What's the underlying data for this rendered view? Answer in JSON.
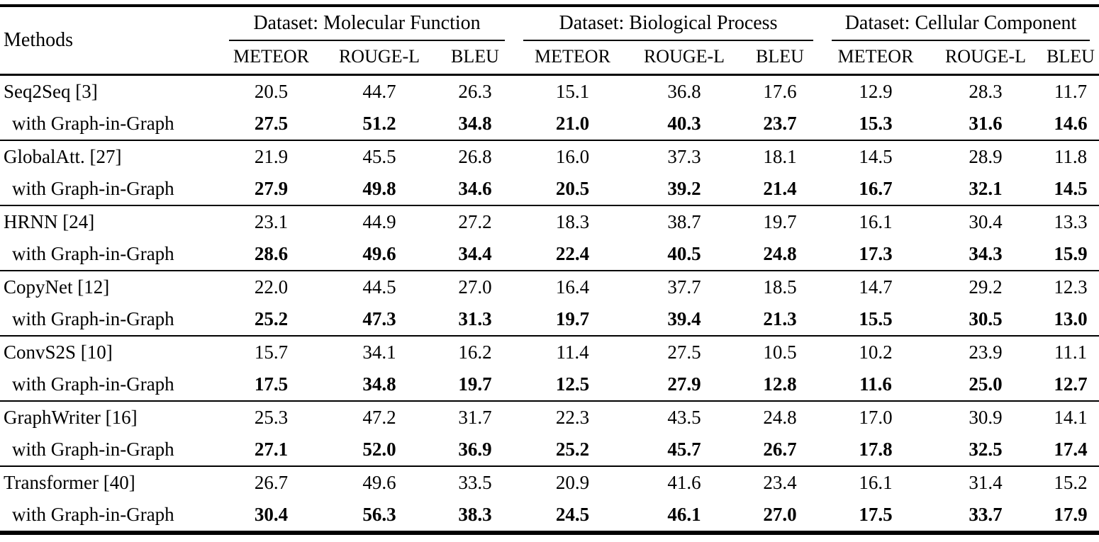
{
  "table": {
    "methods_header": "Methods",
    "dataset_groups": [
      {
        "label": "Dataset: Molecular Function"
      },
      {
        "label": "Dataset: Biological Process"
      },
      {
        "label": "Dataset: Cellular Component"
      }
    ],
    "metric_headers": [
      "METEOR",
      "ROUGE-L",
      "BLEU"
    ],
    "gig_label": "with Graph-in-Graph",
    "groups": [
      {
        "method": "Seq2Seq [3]",
        "base_values": [
          "20.5",
          "44.7",
          "26.3",
          "15.1",
          "36.8",
          "17.6",
          "12.9",
          "28.3",
          "11.7"
        ],
        "gig_values": [
          "27.5",
          "51.2",
          "34.8",
          "21.0",
          "40.3",
          "23.7",
          "15.3",
          "31.6",
          "14.6"
        ]
      },
      {
        "method": "GlobalAtt. [27]",
        "base_values": [
          "21.9",
          "45.5",
          "26.8",
          "16.0",
          "37.3",
          "18.1",
          "14.5",
          "28.9",
          "11.8"
        ],
        "gig_values": [
          "27.9",
          "49.8",
          "34.6",
          "20.5",
          "39.2",
          "21.4",
          "16.7",
          "32.1",
          "14.5"
        ]
      },
      {
        "method": "HRNN [24]",
        "base_values": [
          "23.1",
          "44.9",
          "27.2",
          "18.3",
          "38.7",
          "19.7",
          "16.1",
          "30.4",
          "13.3"
        ],
        "gig_values": [
          "28.6",
          "49.6",
          "34.4",
          "22.4",
          "40.5",
          "24.8",
          "17.3",
          "34.3",
          "15.9"
        ]
      },
      {
        "method": "CopyNet [12]",
        "base_values": [
          "22.0",
          "44.5",
          "27.0",
          "16.4",
          "37.7",
          "18.5",
          "14.7",
          "29.2",
          "12.3"
        ],
        "gig_values": [
          "25.2",
          "47.3",
          "31.3",
          "19.7",
          "39.4",
          "21.3",
          "15.5",
          "30.5",
          "13.0"
        ]
      },
      {
        "method": "ConvS2S [10]",
        "base_values": [
          "15.7",
          "34.1",
          "16.2",
          "11.4",
          "27.5",
          "10.5",
          "10.2",
          "23.9",
          "11.1"
        ],
        "gig_values": [
          "17.5",
          "34.8",
          "19.7",
          "12.5",
          "27.9",
          "12.8",
          "11.6",
          "25.0",
          "12.7"
        ]
      },
      {
        "method": "GraphWriter [16]",
        "base_values": [
          "25.3",
          "47.2",
          "31.7",
          "22.3",
          "43.5",
          "24.8",
          "17.0",
          "30.9",
          "14.1"
        ],
        "gig_values": [
          "27.1",
          "52.0",
          "36.9",
          "25.2",
          "45.7",
          "26.7",
          "17.8",
          "32.5",
          "17.4"
        ]
      },
      {
        "method": "Transformer [40]",
        "base_values": [
          "26.7",
          "49.6",
          "33.5",
          "20.9",
          "41.6",
          "23.4",
          "16.1",
          "31.4",
          "15.2"
        ],
        "gig_values": [
          "30.4",
          "56.3",
          "38.3",
          "24.5",
          "46.1",
          "27.0",
          "17.5",
          "33.7",
          "17.9"
        ]
      }
    ]
  }
}
